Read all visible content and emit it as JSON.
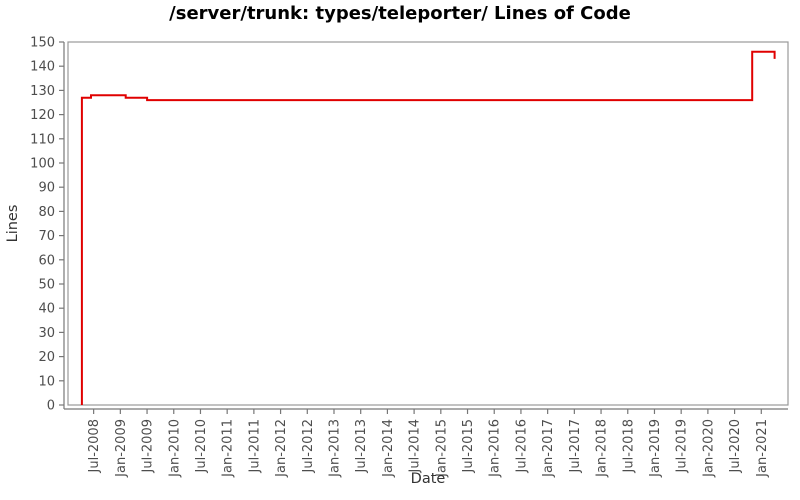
{
  "title": "/server/trunk: types/teleporter/ Lines of Code",
  "chart_data": {
    "type": "line",
    "title": "/server/trunk: types/teleporter/ Lines of Code",
    "xlabel": "Date",
    "ylabel": "Lines",
    "legend": "none",
    "grid": false,
    "line_style": "step",
    "xlim": [
      2008.02,
      2021.5
    ],
    "ylim": [
      0,
      150
    ],
    "y_ticks": [
      0,
      10,
      20,
      30,
      40,
      50,
      60,
      70,
      80,
      90,
      100,
      110,
      120,
      130,
      140,
      150
    ],
    "x_ticks": [
      {
        "v": 2008.5,
        "label": "Jul-2008"
      },
      {
        "v": 2009.0,
        "label": "Jan-2009"
      },
      {
        "v": 2009.5,
        "label": "Jul-2009"
      },
      {
        "v": 2010.0,
        "label": "Jan-2010"
      },
      {
        "v": 2010.5,
        "label": "Jul-2010"
      },
      {
        "v": 2011.0,
        "label": "Jan-2011"
      },
      {
        "v": 2011.5,
        "label": "Jul-2011"
      },
      {
        "v": 2012.0,
        "label": "Jan-2012"
      },
      {
        "v": 2012.5,
        "label": "Jul-2012"
      },
      {
        "v": 2013.0,
        "label": "Jan-2013"
      },
      {
        "v": 2013.5,
        "label": "Jul-2013"
      },
      {
        "v": 2014.0,
        "label": "Jan-2014"
      },
      {
        "v": 2014.5,
        "label": "Jul-2014"
      },
      {
        "v": 2015.0,
        "label": "Jan-2015"
      },
      {
        "v": 2015.5,
        "label": "Jul-2015"
      },
      {
        "v": 2016.0,
        "label": "Jan-2016"
      },
      {
        "v": 2016.5,
        "label": "Jul-2016"
      },
      {
        "v": 2017.0,
        "label": "Jan-2017"
      },
      {
        "v": 2017.5,
        "label": "Jul-2017"
      },
      {
        "v": 2018.0,
        "label": "Jan-2018"
      },
      {
        "v": 2018.5,
        "label": "Jul-2018"
      },
      {
        "v": 2019.0,
        "label": "Jan-2019"
      },
      {
        "v": 2019.5,
        "label": "Jul-2019"
      },
      {
        "v": 2020.0,
        "label": "Jan-2020"
      },
      {
        "v": 2020.5,
        "label": "Jul-2020"
      },
      {
        "v": 2021.0,
        "label": "Jan-2021"
      }
    ],
    "series": [
      {
        "points": [
          [
            2008.28,
            0
          ],
          [
            2008.28,
            127
          ],
          [
            2008.45,
            127
          ],
          [
            2008.45,
            128
          ],
          [
            2009.1,
            128
          ],
          [
            2009.1,
            127
          ],
          [
            2009.5,
            127
          ],
          [
            2009.5,
            126
          ],
          [
            2020.83,
            126
          ],
          [
            2020.83,
            146
          ],
          [
            2021.25,
            146
          ],
          [
            2021.25,
            143
          ]
        ]
      }
    ],
    "colors": {
      "line": "#e00000",
      "frame": "#999999",
      "axis": "#777777",
      "tick_label": "#4d4d4d",
      "axis_title": "#333333",
      "title": "#000000"
    }
  }
}
